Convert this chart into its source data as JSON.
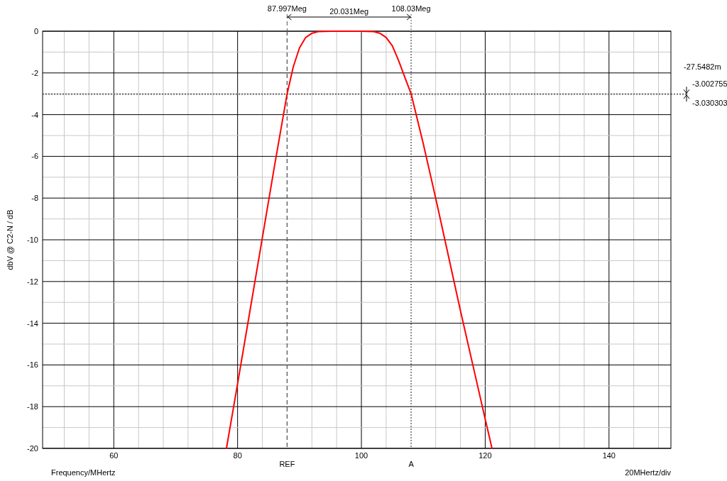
{
  "chart_data": {
    "type": "line",
    "xlabel": "Frequency/MHertz",
    "ylabel": "dbV @ C2-N / dB",
    "xlim": [
      48.5,
      150
    ],
    "ylim": [
      -20,
      0
    ],
    "xticks": [
      {
        "value": 52,
        "label": null
      },
      {
        "value": 56,
        "label": null
      },
      60,
      {
        "value": 64,
        "label": null
      },
      {
        "value": 68,
        "label": null
      },
      {
        "value": 72,
        "label": null
      },
      {
        "value": 76,
        "label": null
      },
      80,
      {
        "value": 84,
        "label": null
      },
      {
        "value": 92,
        "label": null
      },
      {
        "value": 96,
        "label": null
      },
      100,
      {
        "value": 104,
        "label": null
      },
      {
        "value": 112,
        "label": null
      },
      {
        "value": 116,
        "label": null
      },
      120,
      {
        "value": 124,
        "label": null
      },
      {
        "value": 128,
        "label": null
      },
      {
        "value": 132,
        "label": null
      },
      {
        "value": 136,
        "label": null
      },
      140,
      {
        "value": 144,
        "label": null
      },
      {
        "value": 148,
        "label": null
      }
    ],
    "yticks": [
      -20,
      {
        "value": -19,
        "label": null
      },
      -18,
      {
        "value": -17,
        "label": null
      },
      -16,
      {
        "value": -15,
        "label": null
      },
      -14,
      {
        "value": -13,
        "label": null
      },
      -12,
      {
        "value": -11,
        "label": null
      },
      -10,
      {
        "value": -9,
        "label": null
      },
      -8,
      {
        "value": -7,
        "label": null
      },
      -6,
      {
        "value": -5,
        "label": null
      },
      -4,
      {
        "value": -3,
        "label": null
      },
      -2,
      {
        "value": -1,
        "label": null
      },
      0
    ],
    "grid": true,
    "line_style": "solid",
    "series": [
      {
        "color": "#ff0000",
        "x": [
          78.2,
          80,
          82,
          84,
          86,
          88,
          89,
          90,
          91,
          92,
          93,
          95,
          100,
          102,
          103,
          104,
          105,
          106,
          107,
          108.03,
          110,
          112,
          114,
          116,
          118,
          120,
          121.1
        ],
        "values": [
          -20,
          -16.9,
          -13.4,
          -9.9,
          -6.4,
          -3.0,
          -1.7,
          -0.8,
          -0.3,
          -0.1,
          -0.02,
          0,
          0,
          -0.02,
          -0.1,
          -0.3,
          -0.7,
          -1.4,
          -2.2,
          -3.0,
          -5.4,
          -8.0,
          -10.7,
          -13.4,
          -16.0,
          -18.6,
          -20
        ]
      }
    ],
    "ref_lines": [
      {
        "axis": "x",
        "value": 87.997,
        "label": "REF",
        "line_style": "dashed",
        "color": "#555555"
      },
      {
        "axis": "x",
        "value": 108.03,
        "label": "A",
        "line_style": "dotted",
        "color": "#555555"
      },
      {
        "axis": "y",
        "value": -3.002755,
        "label": "-3.002755",
        "line_style": "dotted",
        "color": "#555555"
      },
      {
        "axis": "y",
        "value": -3.030303,
        "label": "-3.030303",
        "line_style": "dotted",
        "color": "#555555"
      }
    ],
    "annotations": [
      "20MHertz/div",
      "-27.5482m",
      "87.997Meg",
      "20.031Meg",
      "108.03Meg"
    ]
  }
}
